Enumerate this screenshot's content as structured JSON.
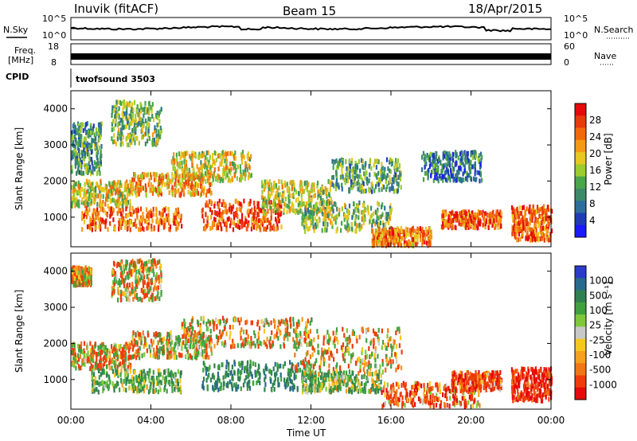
{
  "header": {
    "station": "Inuvik (fitACF)",
    "beam": "Beam 15",
    "date": "18/Apr/2015"
  },
  "panels": {
    "nsky": {
      "label": "N.Sky",
      "left_ticks": [
        "10^5",
        "10^0"
      ],
      "right_ticks": [
        "10^5",
        "10^0"
      ],
      "right_label": "N.Search"
    },
    "freq": {
      "label_line1": "Freq.",
      "label_line2": "[MHz]",
      "left_ticks": [
        "18",
        "8"
      ],
      "right_ticks": [
        "60",
        "0"
      ],
      "right_label": "Nave"
    },
    "cpid": {
      "label": "CPID",
      "value": "twofsound 3503"
    }
  },
  "colors": {
    "power_scale": [
      "#1a1aff",
      "#1e3cb4",
      "#2d6e9a",
      "#3d8a6a",
      "#4aa64a",
      "#9ccc2e",
      "#e6c81e",
      "#f59a14",
      "#f06a0a",
      "#e83a0a",
      "#e60a0a"
    ],
    "velocity_scale": [
      "#2a3cc8",
      "#286a8c",
      "#2e8050",
      "#40a040",
      "#7fc83c",
      "#c8c8c8",
      "#f5c81e",
      "#f5a01e",
      "#f07814",
      "#f03c0a",
      "#e60a0a"
    ]
  },
  "chart_data": [
    {
      "type": "heatmap",
      "name_hint": "power",
      "ylabel": "Slant Range [km]",
      "xlabel": "Time UT",
      "xlim": [
        "00:00",
        "00:00"
      ],
      "xticks": [
        "00:00",
        "04:00",
        "08:00",
        "12:00",
        "16:00",
        "20:00",
        "00:00"
      ],
      "ylim": [
        180,
        4500
      ],
      "yticks": [
        1000,
        2000,
        3000,
        4000
      ],
      "colorbar_label": "Power [dB]",
      "colorbar_ticks": [
        28,
        24,
        20,
        16,
        12,
        8,
        4
      ],
      "clim": [
        0,
        32
      ],
      "blobs": [
        {
          "t": [
            0.0,
            3.0
          ],
          "r": [
            1300,
            2000
          ],
          "v": 18
        },
        {
          "t": [
            0.5,
            5.5
          ],
          "r": [
            650,
            1250
          ],
          "v": 25
        },
        {
          "t": [
            3.0,
            7.0
          ],
          "r": [
            1600,
            2200
          ],
          "v": 22
        },
        {
          "t": [
            5.0,
            9.0
          ],
          "r": [
            2000,
            2800
          ],
          "v": 18
        },
        {
          "t": [
            6.5,
            10.5
          ],
          "r": [
            650,
            1450
          ],
          "v": 27
        },
        {
          "t": [
            9.5,
            13.0
          ],
          "r": [
            1100,
            2000
          ],
          "v": 17
        },
        {
          "t": [
            11.5,
            16.0
          ],
          "r": [
            600,
            1400
          ],
          "v": 15
        },
        {
          "t": [
            13.0,
            16.5
          ],
          "r": [
            1700,
            2600
          ],
          "v": 12
        },
        {
          "t": [
            15.0,
            18.0
          ],
          "r": [
            200,
            700
          ],
          "v": 24
        },
        {
          "t": [
            17.5,
            20.5
          ],
          "r": [
            2000,
            2800
          ],
          "v": 8
        },
        {
          "t": [
            18.5,
            21.5
          ],
          "r": [
            700,
            1150
          ],
          "v": 26
        },
        {
          "t": [
            22.0,
            24.0
          ],
          "r": [
            350,
            1300
          ],
          "v": 25
        },
        {
          "t": [
            2.0,
            4.5
          ],
          "r": [
            3000,
            4200
          ],
          "v": 14
        },
        {
          "t": [
            0.0,
            1.5
          ],
          "r": [
            2200,
            3600
          ],
          "v": 11
        }
      ]
    },
    {
      "type": "heatmap",
      "name_hint": "velocity",
      "ylabel": "Slant Range [km]",
      "xlabel": "Time UT",
      "xlim": [
        "00:00",
        "00:00"
      ],
      "xticks": [
        "00:00",
        "04:00",
        "08:00",
        "12:00",
        "16:00",
        "20:00",
        "00:00"
      ],
      "ylim": [
        180,
        4500
      ],
      "yticks": [
        1000,
        2000,
        3000,
        4000
      ],
      "colorbar_label": "Velocity [m s⁻¹]",
      "colorbar_ticks": [
        "1000",
        "500",
        "100",
        "25",
        "-25",
        "-100",
        "-500",
        "-1000"
      ],
      "blobs": [
        {
          "t": [
            0.0,
            3.0
          ],
          "r": [
            1300,
            2000
          ],
          "v": 0
        },
        {
          "t": [
            1.0,
            5.5
          ],
          "r": [
            650,
            1250
          ],
          "v": 200
        },
        {
          "t": [
            3.0,
            7.0
          ],
          "r": [
            1600,
            2300
          ],
          "v": 0
        },
        {
          "t": [
            5.5,
            12.0
          ],
          "r": [
            1900,
            2700
          ],
          "v": 0
        },
        {
          "t": [
            6.5,
            12.0
          ],
          "r": [
            700,
            1500
          ],
          "v": 400
        },
        {
          "t": [
            11.0,
            16.5
          ],
          "r": [
            1200,
            2400
          ],
          "v": 0
        },
        {
          "t": [
            11.5,
            15.5
          ],
          "r": [
            650,
            1200
          ],
          "v": 150
        },
        {
          "t": [
            15.5,
            20.5
          ],
          "r": [
            250,
            900
          ],
          "v": -150
        },
        {
          "t": [
            19.0,
            21.5
          ],
          "r": [
            700,
            1200
          ],
          "v": -200
        },
        {
          "t": [
            22.0,
            24.0
          ],
          "r": [
            400,
            1300
          ],
          "v": -300
        },
        {
          "t": [
            2.0,
            4.5
          ],
          "r": [
            3200,
            4300
          ],
          "v": 0
        },
        {
          "t": [
            0.0,
            1.0
          ],
          "r": [
            3600,
            4100
          ],
          "v": 0
        }
      ]
    }
  ]
}
